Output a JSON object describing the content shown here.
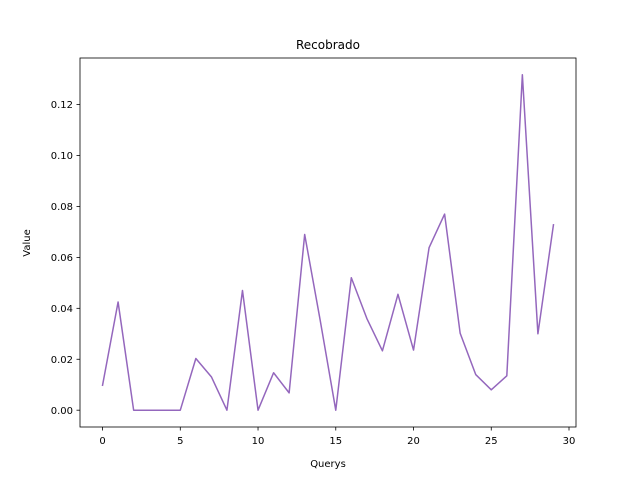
{
  "chart_data": {
    "type": "line",
    "title": "Recobrado",
    "xlabel": "Querys",
    "ylabel": "Value",
    "xlim": [
      -1.45,
      30.45
    ],
    "ylim": [
      -0.0066,
      0.1383
    ],
    "xticks": [
      0,
      5,
      10,
      15,
      20,
      25,
      30
    ],
    "yticks": [
      0.0,
      0.02,
      0.04,
      0.06,
      0.08,
      0.1,
      0.12
    ],
    "ytick_labels": [
      "0.00",
      "0.02",
      "0.04",
      "0.06",
      "0.08",
      "0.10",
      "0.12"
    ],
    "grid": false,
    "series": [
      {
        "color": "#9467bd",
        "x": [
          0,
          1,
          2,
          3,
          4,
          5,
          6,
          7,
          8,
          9,
          10,
          11,
          12,
          13,
          14,
          15,
          16,
          17,
          18,
          19,
          20,
          21,
          22,
          23,
          24,
          25,
          26,
          27,
          28,
          29
        ],
        "values": [
          0.0098,
          0.0425,
          0.0,
          0.0,
          0.0,
          0.0,
          0.0203,
          0.0131,
          0.0,
          0.047,
          0.0,
          0.0147,
          0.0068,
          0.069,
          0.0352,
          0.0,
          0.052,
          0.036,
          0.0233,
          0.0455,
          0.0236,
          0.0638,
          0.077,
          0.0302,
          0.014,
          0.008,
          0.0135,
          0.1317,
          0.03,
          0.0728
        ]
      }
    ]
  }
}
